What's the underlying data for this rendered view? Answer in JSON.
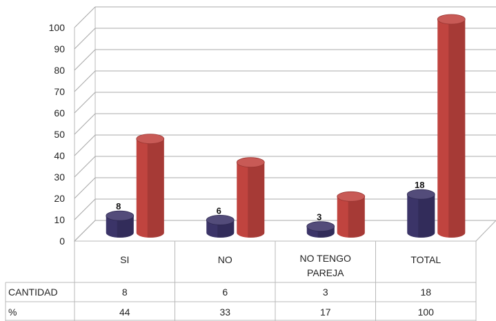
{
  "chart_data": {
    "type": "bar",
    "categories": [
      "SI",
      "NO",
      "NO TENGO PAREJA",
      "TOTAL"
    ],
    "category_lines": [
      [
        "SI"
      ],
      [
        "NO"
      ],
      [
        "NO TENGO",
        "PAREJA"
      ],
      [
        "TOTAL"
      ]
    ],
    "series": [
      {
        "name": "CANTIDAD",
        "values": [
          8,
          6,
          3,
          18
        ],
        "color": "#3b3468"
      },
      {
        "name": "%",
        "values": [
          44,
          33,
          17,
          100
        ],
        "color": "#c0443f"
      }
    ],
    "data_labels": [
      "8",
      "6",
      "3",
      "18"
    ],
    "ylim": [
      0,
      100
    ],
    "yticks": [
      0,
      10,
      20,
      30,
      40,
      50,
      60,
      70,
      80,
      90,
      100
    ],
    "grid": true,
    "style": "3d-cylinder",
    "data_table": {
      "rows": [
        {
          "header": "CANTIDAD",
          "cells": [
            "8",
            "6",
            "3",
            "18"
          ]
        },
        {
          "header": "%",
          "cells": [
            "44",
            "33",
            "17",
            "100"
          ]
        }
      ]
    }
  }
}
